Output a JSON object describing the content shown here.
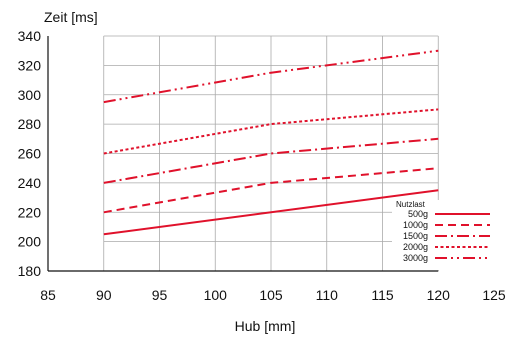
{
  "chart_data": {
    "type": "line",
    "title": "",
    "xlabel": "Hub [mm]",
    "ylabel": "Zeit [ms]",
    "xlim": [
      85,
      125
    ],
    "ylim": [
      180,
      340
    ],
    "xticks": [
      85,
      90,
      95,
      100,
      105,
      110,
      115,
      120,
      125
    ],
    "yticks": [
      180,
      200,
      220,
      240,
      260,
      280,
      300,
      320,
      340
    ],
    "grid": true,
    "grid_x_range": [
      90,
      120
    ],
    "legend": {
      "title": "Nutzlast",
      "placement": "bottom-right"
    },
    "series": [
      {
        "name": "500g",
        "dash": "solid",
        "x": [
          90,
          120
        ],
        "y": [
          205,
          235
        ]
      },
      {
        "name": "1000g",
        "dash": "dashed",
        "x": [
          90,
          105,
          120
        ],
        "y": [
          220,
          240,
          250
        ]
      },
      {
        "name": "1500g",
        "dash": "dash-dot",
        "x": [
          90,
          105,
          120
        ],
        "y": [
          240,
          260,
          270
        ]
      },
      {
        "name": "2000g",
        "dash": "dotted",
        "x": [
          90,
          105,
          120
        ],
        "y": [
          260,
          280,
          290
        ]
      },
      {
        "name": "3000g",
        "dash": "dash-dot-dot",
        "x": [
          90,
          105,
          120
        ],
        "y": [
          295,
          315,
          330
        ]
      }
    ],
    "colors": {
      "line": "#e0112b",
      "grid": "#aaaaaa",
      "axis": "#111111"
    }
  }
}
